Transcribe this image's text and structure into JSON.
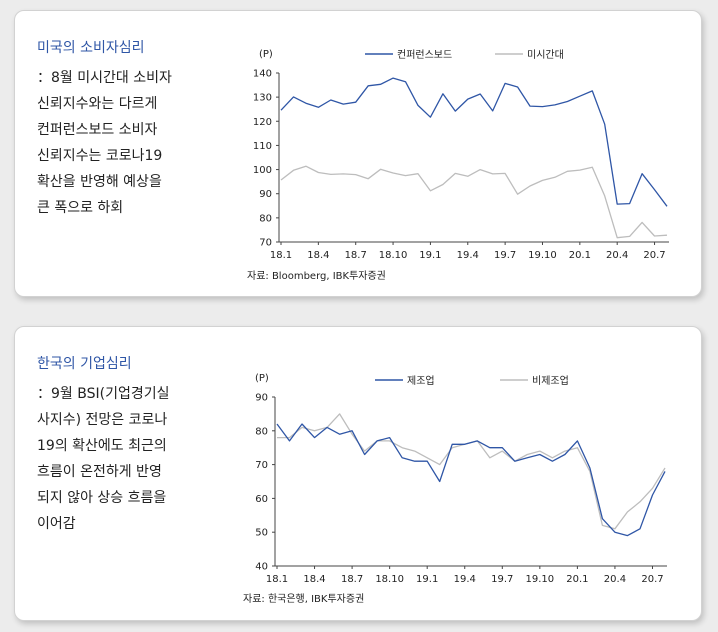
{
  "panels": [
    {
      "title": "미국의 소비자심리",
      "description": "：8월 미시간대 소비자\n신뢰지수와는 다르게\n컨퍼런스보드 소비자\n신뢰지수는 코로나19\n확산을 반영해 예상을\n큰 폭으로 하회",
      "source": "자료: Bloomberg, IBK투자증권"
    },
    {
      "title": "한국의 기업심리",
      "description": "：9월 BSI(기업경기실\n사지수) 전망은 코로나\n19의 확산에도 최근의\n흐름이 온전하게 반영\n되지 않아 상승 흐름을\n이어감",
      "source": "자료: 한국은행, IBK투자증권"
    }
  ],
  "chart_data": [
    {
      "type": "line",
      "unit_label": "(P)",
      "x_ticks": [
        "18.1",
        "18.4",
        "18.7",
        "18.10",
        "19.1",
        "19.4",
        "19.7",
        "19.10",
        "20.1",
        "20.4",
        "20.7"
      ],
      "ylim": [
        70,
        140
      ],
      "y_ticks": [
        70,
        80,
        90,
        100,
        110,
        120,
        130,
        140
      ],
      "legend_position": "top",
      "series": [
        {
          "name": "컨퍼런스보드",
          "color": "#2f56a6",
          "values": [
            124.6,
            130.1,
            127.5,
            125.8,
            128.8,
            127.1,
            127.9,
            134.7,
            135.3,
            137.9,
            136.4,
            126.6,
            121.7,
            131.4,
            124.2,
            129.2,
            131.3,
            124.3,
            135.7,
            134.2,
            126.3,
            126.1,
            126.8,
            128.2,
            130.4,
            132.6,
            118.8,
            85.7,
            85.9,
            98.3,
            91.7,
            84.8
          ]
        },
        {
          "name": "미시간대",
          "color": "#bdbdbd",
          "values": [
            95.7,
            99.7,
            101.4,
            98.8,
            98.0,
            98.2,
            97.9,
            96.2,
            100.1,
            98.6,
            97.5,
            98.3,
            91.2,
            93.8,
            98.4,
            97.2,
            100.0,
            98.2,
            98.4,
            89.8,
            93.2,
            95.5,
            96.8,
            99.3,
            99.8,
            101.0,
            89.1,
            71.8,
            72.3,
            78.1,
            72.5,
            72.8
          ]
        }
      ]
    },
    {
      "type": "line",
      "unit_label": "(P)",
      "x_ticks": [
        "18.1",
        "18.4",
        "18.7",
        "18.10",
        "19.1",
        "19.4",
        "19.7",
        "19.10",
        "20.1",
        "20.4",
        "20.7"
      ],
      "ylim": [
        40,
        90
      ],
      "y_ticks": [
        40,
        50,
        60,
        70,
        80,
        90
      ],
      "legend_position": "top",
      "series": [
        {
          "name": "제조업",
          "color": "#2f56a6",
          "values": [
            82,
            77,
            82,
            78,
            81,
            79,
            80,
            73,
            77,
            78,
            72,
            71,
            71,
            65,
            76,
            76,
            77,
            75,
            75,
            71,
            72,
            73,
            71,
            73,
            77,
            69,
            54,
            50,
            49,
            51,
            61,
            68
          ]
        },
        {
          "name": "비제조업",
          "color": "#bdbdbd",
          "values": [
            78,
            78,
            81,
            80,
            81,
            85,
            79,
            74,
            77,
            77,
            75,
            74,
            72,
            70,
            75,
            76,
            77,
            72,
            74,
            71,
            73,
            74,
            72,
            74,
            75,
            68,
            52,
            51,
            56,
            59,
            63,
            69
          ]
        }
      ]
    }
  ]
}
